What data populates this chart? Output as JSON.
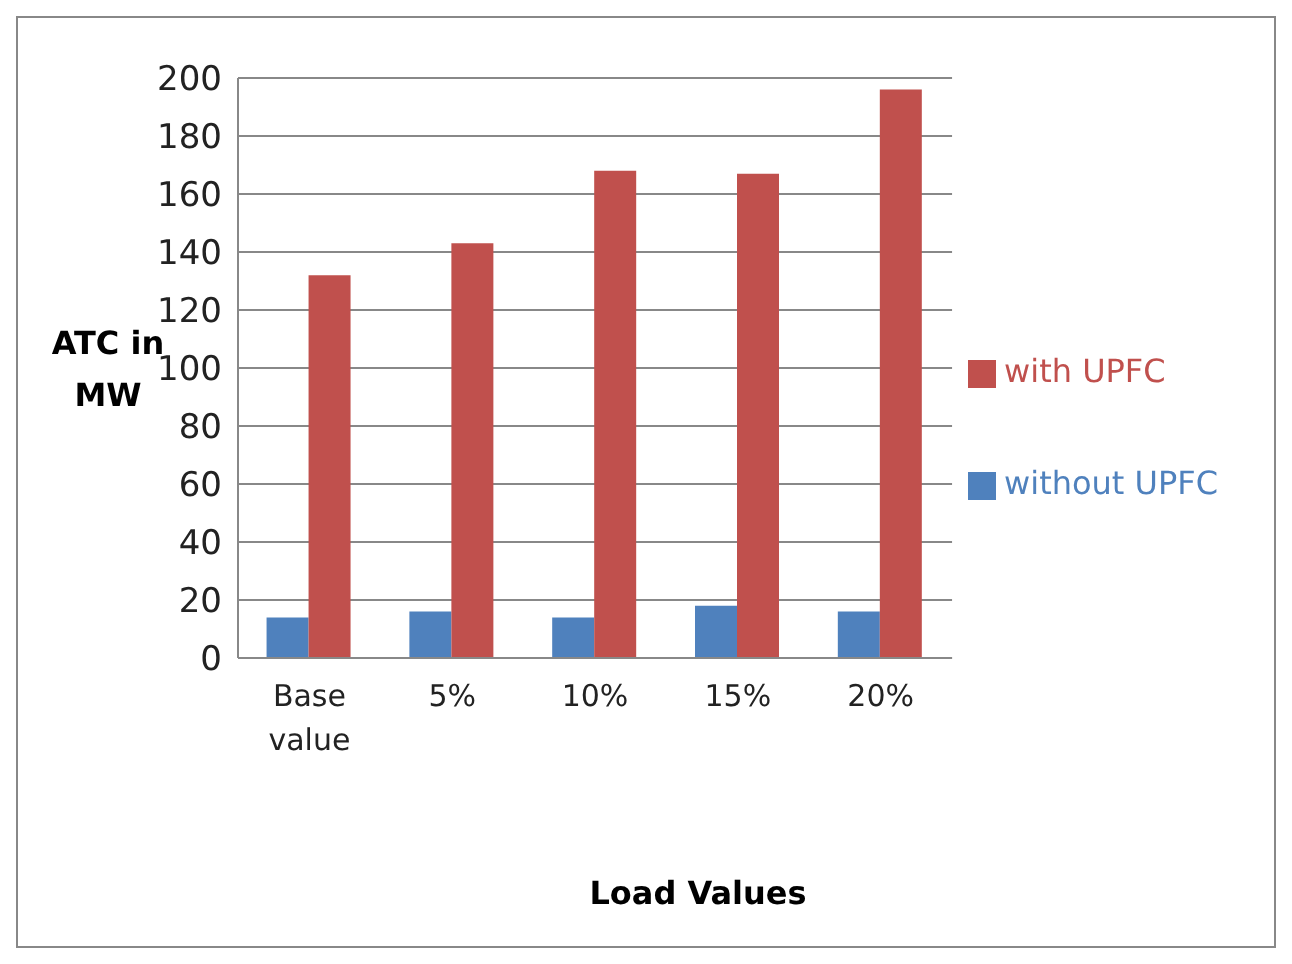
{
  "chart_data": {
    "type": "bar",
    "xlabel": "Load Values",
    "ylabel": "ATC in MW",
    "categories": [
      "Base value",
      "5%",
      "10%",
      "15%",
      "20%"
    ],
    "series": [
      {
        "name": "without UPFC",
        "color": "#4f81bd",
        "values": [
          14,
          16,
          14,
          18,
          16
        ]
      },
      {
        "name": "with UPFC",
        "color": "#c0504d",
        "values": [
          132,
          143,
          168,
          167,
          196
        ]
      }
    ],
    "ylim": [
      0,
      200
    ],
    "yticks": [
      0,
      20,
      40,
      60,
      80,
      100,
      120,
      140,
      160,
      180,
      200
    ],
    "grid": "y",
    "legend": "right"
  }
}
